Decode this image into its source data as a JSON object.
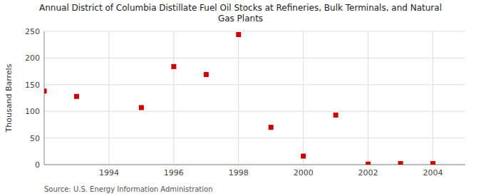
{
  "chart_data": {
    "type": "scatter",
    "title": "Annual District of Columbia Distillate Fuel Oil Stocks at Refineries, Bulk Terminals, and Natural\nGas Plants",
    "ylabel": "Thousand Barrels",
    "annotations": [
      "Source: U.S. Energy Information Administration"
    ],
    "x": [
      1992,
      1993,
      1995,
      1996,
      1997,
      1998,
      1999,
      2000,
      2001,
      2002,
      2003,
      2004
    ],
    "values": [
      138,
      128,
      107,
      184,
      169,
      244,
      70,
      16,
      93,
      1,
      2,
      2
    ],
    "color": "#cc0000",
    "marker": "square",
    "xlim": [
      1992.0,
      2005.0
    ],
    "ylim": [
      0,
      250
    ],
    "xticks": [
      1994,
      1996,
      1998,
      2000,
      2002,
      2004
    ],
    "yticks": [
      0,
      50,
      100,
      150,
      200,
      250
    ],
    "grid": true
  }
}
